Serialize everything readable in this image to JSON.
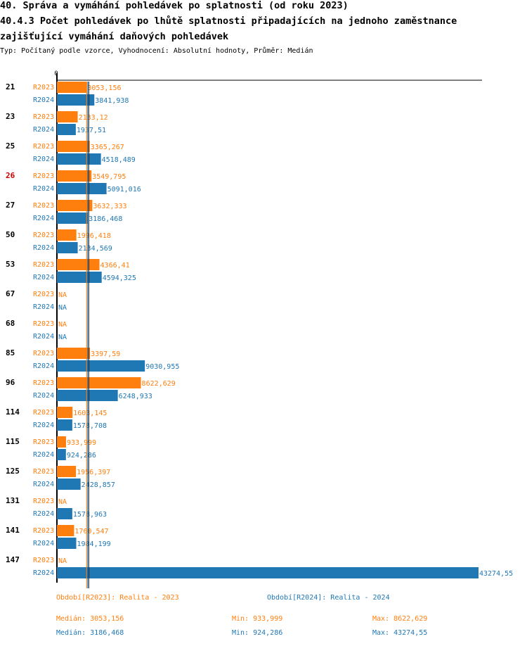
{
  "header": {
    "title_line1": "40. Správa a vymáhání pohledávek po splatnosti (od roku 2023)",
    "title_line2": "40.4.3 Počet pohledávek po lhůtě splatnosti připadajících na jednoho zaměstnance",
    "title_line3": "zajišťující vymáhání daňových pohledávek",
    "subtitle": "Typ: Počítaný podle vzorce, Vyhodnocení: Absolutní hodnoty, Průměr: Medián"
  },
  "chart_data": {
    "type": "bar",
    "orientation": "horizontal",
    "x_axis_tick": "0",
    "xlim": [
      0,
      43274.55
    ],
    "colors": {
      "R2023": "#ff7f0e",
      "R2024": "#1f77b4",
      "highlight": "#cc0000"
    },
    "highlight_category": "26",
    "series_names": [
      "R2023",
      "R2024"
    ],
    "median_lines": [
      3053.156,
      3186.468
    ],
    "categories": [
      {
        "label": "21",
        "values": [
          3053.156,
          3841.938
        ],
        "texts": [
          "3053,156",
          "3841,938"
        ]
      },
      {
        "label": "23",
        "values": [
          2133.12,
          1937.51
        ],
        "texts": [
          "2133,12",
          "1937,51"
        ]
      },
      {
        "label": "25",
        "values": [
          3365.267,
          4518.489
        ],
        "texts": [
          "3365,267",
          "4518,489"
        ]
      },
      {
        "label": "26",
        "values": [
          3549.795,
          5091.016
        ],
        "texts": [
          "3549,795",
          "5091,016"
        ]
      },
      {
        "label": "27",
        "values": [
          3632.333,
          3186.468
        ],
        "texts": [
          "3632,333",
          "3186,468"
        ]
      },
      {
        "label": "50",
        "values": [
          1996.418,
          2134.569
        ],
        "texts": [
          "1996,418",
          "2134,569"
        ]
      },
      {
        "label": "53",
        "values": [
          4366.41,
          4594.325
        ],
        "texts": [
          "4366,41",
          "4594,325"
        ]
      },
      {
        "label": "67",
        "values": [
          null,
          null
        ],
        "texts": [
          "NA",
          "NA"
        ]
      },
      {
        "label": "68",
        "values": [
          null,
          null
        ],
        "texts": [
          "NA",
          "NA"
        ]
      },
      {
        "label": "85",
        "values": [
          3397.59,
          9030.955
        ],
        "texts": [
          "3397,59",
          "9030,955"
        ]
      },
      {
        "label": "96",
        "values": [
          8622.629,
          6248.933
        ],
        "texts": [
          "8622,629",
          "6248,933"
        ]
      },
      {
        "label": "114",
        "values": [
          1603.145,
          1578.708
        ],
        "texts": [
          "1603,145",
          "1578,708"
        ]
      },
      {
        "label": "115",
        "values": [
          933.999,
          924.286
        ],
        "texts": [
          "933,999",
          "924,286"
        ]
      },
      {
        "label": "125",
        "values": [
          1956.397,
          2428.857
        ],
        "texts": [
          "1956,397",
          "2428,857"
        ]
      },
      {
        "label": "131",
        "values": [
          null,
          1578.963
        ],
        "texts": [
          "NA",
          "1578,963"
        ]
      },
      {
        "label": "141",
        "values": [
          1760.547,
          1984.199
        ],
        "texts": [
          "1760,547",
          "1984,199"
        ]
      },
      {
        "label": "147",
        "values": [
          null,
          43274.55
        ],
        "texts": [
          "NA",
          "43274,55"
        ]
      }
    ]
  },
  "legend": {
    "period_2023": "Období[R2023]: Realita - 2023",
    "period_2024": "Období[R2024]: Realita - 2024",
    "median_2023": "Medián: 3053,156",
    "min_2023": "Min: 933,999",
    "max_2023": "Max: 8622,629",
    "median_2024": "Medián: 3186,468",
    "min_2024": "Min: 924,286",
    "max_2024": "Max: 43274,55"
  }
}
